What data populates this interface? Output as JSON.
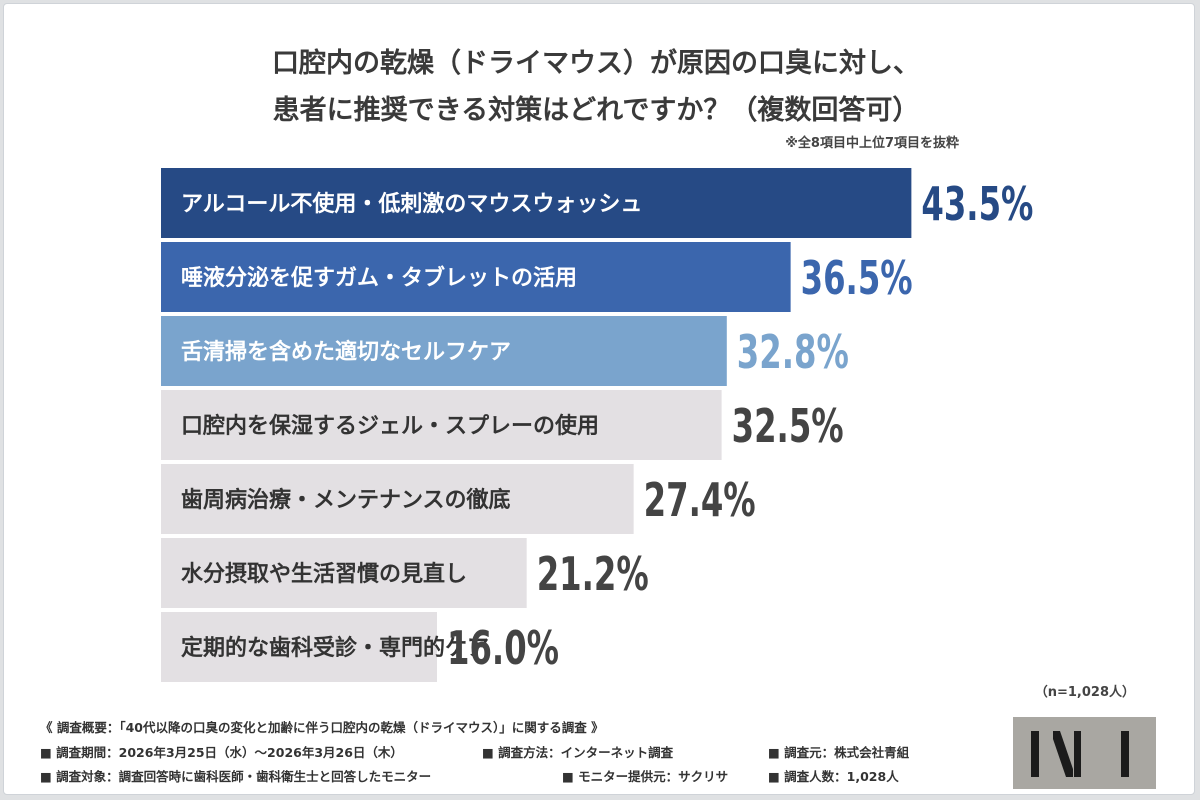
{
  "chart_data": {
    "type": "bar",
    "orientation": "horizontal",
    "title_lines": [
      "口腔内の乾燥（ドライマウス）が原因の口臭に対し、",
      "患者に推奨できる対策はどれですか？（複数回答可）"
    ],
    "note": "※全8項目中上位7項目を抜粋",
    "categories": [
      "アルコール不使用・低刺激のマウスウォッシュ",
      "唾液分泌を促すガム・タブレットの活用",
      "舌清掃を含めた適切なセルフケア",
      "口腔内を保湿するジェル・スプレーの使用",
      "歯周病治療・メンテナンスの徹底",
      "水分摂取や生活習慣の見直し",
      "定期的な歯科受診・専門的ケア"
    ],
    "values": [
      43.5,
      36.5,
      32.8,
      32.5,
      27.4,
      21.2,
      16.0
    ],
    "value_labels": [
      "43.5%",
      "36.5%",
      "32.8%",
      "32.5%",
      "27.4%",
      "21.2%",
      "16.0%"
    ],
    "bar_colors": [
      "#264a85",
      "#3b66ad",
      "#7aa4cd",
      "#e3e0e3",
      "#e3e0e3",
      "#e3e0e3",
      "#e3e0e3"
    ],
    "label_colors": [
      "#ffffff",
      "#ffffff",
      "#ffffff",
      "#333333",
      "#333333",
      "#333333",
      "#333333"
    ],
    "value_colors": [
      "#264a85",
      "#3b66ad",
      "#7aa4cd",
      "#444444",
      "#444444",
      "#444444",
      "#444444"
    ],
    "sample_size": "（n=1,028人）"
  },
  "footer": {
    "survey_title": "《 調査概要：「40代以降の口臭の変化と加齢に伴う口腔内の乾燥（ドライマウス）」に関する調査 》",
    "period": "■ 調査期間：2026年3月25日（水）～2026年3月26日（木）",
    "method": "■ 調査方法：インターネット調査",
    "organizer": "■ 調査元：株式会社青組",
    "target": "■ 調査対象：調査回答時に歯科医師・歯科衛生士と回答したモニター",
    "provider": "■ モニター提供元：サクリサ",
    "count": "■ 調査人数：1,028人"
  }
}
